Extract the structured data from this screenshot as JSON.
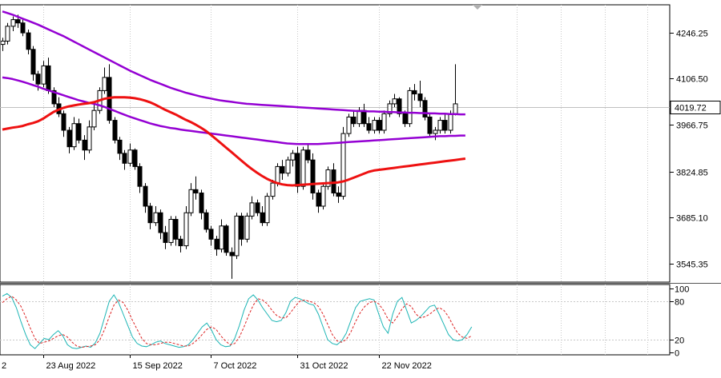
{
  "chart_data": [
    {
      "type": "candlestick",
      "price_ticks": [
        4246.25,
        4106.5,
        3966.75,
        3824.85,
        3685.1,
        3545.35
      ],
      "price_tick_labels": [
        "4246.25",
        "4106.50",
        "3966.75",
        "3824.85",
        "3685.10",
        "3545.35"
      ],
      "current_price": 4019.72,
      "current_price_label": "4019.72",
      "ylim": [
        3490,
        4330
      ],
      "date_labels": [
        "2",
        "23 Aug 2022",
        "15 Sep 2022",
        "7 Oct 2022",
        "31 Oct 2022",
        "22 Nov 2022"
      ],
      "date_label_bars": [
        -1,
        8,
        25,
        41,
        58,
        74
      ],
      "candles": [
        [
          4210,
          4230,
          4190,
          4220
        ],
        [
          4220,
          4275,
          4210,
          4265
        ],
        [
          4265,
          4295,
          4250,
          4285
        ],
        [
          4285,
          4300,
          4260,
          4275
        ],
        [
          4275,
          4285,
          4235,
          4245
        ],
        [
          4245,
          4255,
          4180,
          4195
        ],
        [
          4195,
          4205,
          4100,
          4120
        ],
        [
          4120,
          4130,
          4070,
          4090
        ],
        [
          4090,
          4160,
          4080,
          4145
        ],
        [
          4145,
          4170,
          4060,
          4070
        ],
        [
          4070,
          4080,
          4020,
          4030
        ],
        [
          4030,
          4050,
          3990,
          4000
        ],
        [
          4000,
          4010,
          3930,
          3950
        ],
        [
          3950,
          3960,
          3880,
          3900
        ],
        [
          3900,
          3990,
          3890,
          3970
        ],
        [
          3970,
          3985,
          3910,
          3920
        ],
        [
          3920,
          3935,
          3860,
          3890
        ],
        [
          3890,
          3980,
          3880,
          3960
        ],
        [
          3960,
          4030,
          3950,
          4010
        ],
        [
          4010,
          4080,
          4000,
          4070
        ],
        [
          4070,
          4140,
          4060,
          4110
        ],
        [
          4110,
          4150,
          3970,
          3980
        ],
        [
          3980,
          3990,
          3910,
          3920
        ],
        [
          3920,
          3930,
          3860,
          3880
        ],
        [
          3880,
          3890,
          3830,
          3850
        ],
        [
          3850,
          3910,
          3840,
          3890
        ],
        [
          3890,
          3895,
          3830,
          3840
        ],
        [
          3840,
          3850,
          3760,
          3780
        ],
        [
          3780,
          3790,
          3700,
          3720
        ],
        [
          3720,
          3730,
          3650,
          3670
        ],
        [
          3670,
          3720,
          3660,
          3700
        ],
        [
          3700,
          3710,
          3620,
          3640
        ],
        [
          3640,
          3660,
          3590,
          3610
        ],
        [
          3610,
          3690,
          3600,
          3680
        ],
        [
          3680,
          3690,
          3600,
          3620
        ],
        [
          3620,
          3630,
          3580,
          3600
        ],
        [
          3600,
          3720,
          3590,
          3700
        ],
        [
          3700,
          3790,
          3690,
          3770
        ],
        [
          3770,
          3810,
          3740,
          3760
        ],
        [
          3760,
          3770,
          3680,
          3700
        ],
        [
          3700,
          3710,
          3640,
          3650
        ],
        [
          3650,
          3660,
          3600,
          3620
        ],
        [
          3620,
          3630,
          3570,
          3590
        ],
        [
          3590,
          3680,
          3580,
          3660
        ],
        [
          3660,
          3665,
          3570,
          3580
        ],
        [
          3580,
          3595,
          3500,
          3570
        ],
        [
          3570,
          3700,
          3560,
          3690
        ],
        [
          3690,
          3700,
          3600,
          3620
        ],
        [
          3620,
          3700,
          3610,
          3690
        ],
        [
          3690,
          3750,
          3680,
          3730
        ],
        [
          3730,
          3740,
          3690,
          3700
        ],
        [
          3700,
          3720,
          3660,
          3670
        ],
        [
          3670,
          3760,
          3660,
          3750
        ],
        [
          3750,
          3800,
          3740,
          3790
        ],
        [
          3790,
          3850,
          3780,
          3840
        ],
        [
          3840,
          3860,
          3800,
          3820
        ],
        [
          3820,
          3870,
          3810,
          3860
        ],
        [
          3860,
          3890,
          3840,
          3880
        ],
        [
          3880,
          3900,
          3760,
          3780
        ],
        [
          3780,
          3900,
          3770,
          3890
        ],
        [
          3890,
          3910,
          3850,
          3860
        ],
        [
          3860,
          3880,
          3740,
          3760
        ],
        [
          3760,
          3770,
          3700,
          3720
        ],
        [
          3720,
          3790,
          3710,
          3780
        ],
        [
          3780,
          3840,
          3770,
          3830
        ],
        [
          3830,
          3850,
          3750,
          3760
        ],
        [
          3760,
          3780,
          3730,
          3750
        ],
        [
          3750,
          3960,
          3740,
          3940
        ],
        [
          3940,
          4000,
          3930,
          3990
        ],
        [
          3990,
          4010,
          3960,
          3970
        ],
        [
          3970,
          4020,
          3960,
          4010
        ],
        [
          4010,
          4030,
          3960,
          3970
        ],
        [
          3970,
          3990,
          3940,
          3950
        ],
        [
          3950,
          3990,
          3940,
          3980
        ],
        [
          3980,
          3990,
          3940,
          3950
        ],
        [
          3950,
          4010,
          3940,
          4000
        ],
        [
          4000,
          4040,
          3990,
          4030
        ],
        [
          4030,
          4060,
          4020,
          4045
        ],
        [
          4045,
          4050,
          3990,
          4000
        ],
        [
          4000,
          4010,
          3960,
          3970
        ],
        [
          3970,
          4080,
          3960,
          4070
        ],
        [
          4070,
          4090,
          4040,
          4060
        ],
        [
          4060,
          4100,
          4020,
          4040
        ],
        [
          4040,
          4050,
          3980,
          3990
        ],
        [
          3990,
          4000,
          3930,
          3940
        ],
        [
          3940,
          3960,
          3920,
          3950
        ],
        [
          3950,
          3990,
          3940,
          3980
        ],
        [
          3980,
          4000,
          3940,
          3950
        ],
        [
          3950,
          4010,
          3940,
          4000
        ],
        [
          4000,
          4150,
          3995,
          4030
        ]
      ],
      "series": [
        {
          "color": "#9400d3",
          "line_width": 2.5,
          "values": [
            4310,
            4305,
            4300,
            4294,
            4288,
            4282,
            4276,
            4270,
            4263,
            4256,
            4249,
            4242,
            4235,
            4227,
            4219,
            4211,
            4203,
            4195,
            4187,
            4179,
            4171,
            4163,
            4155,
            4147,
            4139,
            4131,
            4124,
            4117,
            4110,
            4103,
            4097,
            4091,
            4085,
            4079,
            4074,
            4069,
            4064,
            4060,
            4056,
            4052,
            4049,
            4046,
            4043,
            4040,
            4038,
            4036,
            4034,
            4032,
            4030,
            4029,
            4028,
            4027,
            4026,
            4025,
            4024,
            4023,
            4022,
            4021,
            4020,
            4019,
            4018,
            4017,
            4016,
            4015,
            4014,
            4013,
            4012,
            4011,
            4010,
            4009,
            4008,
            4008,
            4007,
            4007,
            4006,
            4006,
            4005,
            4005,
            4004,
            4004,
            4003,
            4003,
            4002,
            4002,
            4001,
            4001,
            4000,
            4000,
            3999,
            3999,
            3998,
            3998
          ]
        },
        {
          "color": "#9400d3",
          "line_width": 2.5,
          "values": [
            4110,
            4108,
            4105,
            4101,
            4097,
            4092,
            4087,
            4082,
            4076,
            4071,
            4066,
            4061,
            4056,
            4051,
            4046,
            4041,
            4037,
            4033,
            4030,
            4026,
            4021,
            4015,
            4009,
            4003,
            3997,
            3991,
            3986,
            3981,
            3976,
            3971,
            3967,
            3963,
            3960,
            3957,
            3955,
            3952,
            3950,
            3948,
            3946,
            3944,
            3942,
            3940,
            3938,
            3936,
            3934,
            3932,
            3930,
            3928,
            3926,
            3924,
            3922,
            3920,
            3918,
            3916,
            3914,
            3912,
            3910,
            3909,
            3908,
            3908,
            3908,
            3908,
            3908,
            3909,
            3910,
            3911,
            3912,
            3913,
            3914,
            3915,
            3916,
            3917,
            3918,
            3919,
            3920,
            3921,
            3922,
            3923,
            3924,
            3925,
            3926,
            3927,
            3928,
            3929,
            3930,
            3931,
            3932,
            3932,
            3933,
            3933,
            3934,
            3934
          ]
        },
        {
          "color": "#ee1111",
          "line_width": 3,
          "values": [
            3952,
            3955,
            3958,
            3960,
            3963,
            3968,
            3972,
            3977,
            3985,
            3995,
            4005,
            4012,
            4018,
            4022,
            4025,
            4028,
            4030,
            4032,
            4035,
            4040,
            4045,
            4048,
            4050,
            4050,
            4050,
            4049,
            4047,
            4044,
            4040,
            4035,
            4028,
            4020,
            4012,
            4005,
            3998,
            3990,
            3982,
            3975,
            3967,
            3958,
            3948,
            3936,
            3923,
            3910,
            3897,
            3884,
            3871,
            3858,
            3845,
            3833,
            3822,
            3812,
            3803,
            3796,
            3790,
            3786,
            3784,
            3783,
            3784,
            3785,
            3786,
            3787,
            3788,
            3789,
            3790,
            3791,
            3792,
            3795,
            3800,
            3806,
            3812,
            3818,
            3824,
            3828,
            3830,
            3832,
            3834,
            3836,
            3838,
            3840,
            3842,
            3844,
            3846,
            3848,
            3850,
            3852,
            3854,
            3856,
            3858,
            3860,
            3862,
            3864
          ]
        }
      ]
    },
    {
      "type": "line",
      "name": "stochastic",
      "ylim": [
        0,
        100
      ],
      "ticks": [
        100,
        80,
        20,
        0
      ],
      "tick_labels": [
        "100",
        "80",
        "20",
        "0"
      ],
      "series": [
        {
          "color": "#1cb5b5",
          "values": [
            88,
            92,
            86,
            70,
            48,
            28,
            12,
            6,
            14,
            22,
            20,
            28,
            34,
            26,
            12,
            7,
            6,
            8,
            10,
            8,
            15,
            30,
            55,
            80,
            90,
            78,
            60,
            42,
            24,
            14,
            10,
            9,
            12,
            16,
            18,
            14,
            12,
            10,
            8,
            9,
            12,
            20,
            30,
            40,
            46,
            35,
            20,
            12,
            9,
            10,
            22,
            42,
            66,
            84,
            90,
            82,
            70,
            60,
            50,
            48,
            50,
            62,
            80,
            86,
            84,
            80,
            76,
            74,
            60,
            40,
            20,
            14,
            12,
            18,
            30,
            50,
            70,
            80,
            82,
            84,
            82,
            60,
            40,
            30,
            60,
            80,
            86,
            66,
            46,
            50,
            56,
            64,
            72,
            74,
            60,
            44,
            28,
            20,
            18,
            20,
            28,
            40
          ]
        },
        {
          "color": "#dd2222",
          "values": [
            78,
            84,
            88,
            82,
            72,
            56,
            38,
            22,
            14,
            16,
            18,
            22,
            26,
            28,
            24,
            16,
            10,
            8,
            9,
            10,
            12,
            20,
            36,
            56,
            74,
            82,
            78,
            66,
            50,
            36,
            22,
            14,
            12,
            12,
            14,
            16,
            16,
            14,
            12,
            10,
            10,
            14,
            20,
            28,
            36,
            40,
            36,
            26,
            18,
            12,
            14,
            24,
            40,
            58,
            74,
            84,
            82,
            76,
            66,
            58,
            54,
            54,
            62,
            72,
            80,
            82,
            80,
            78,
            72,
            60,
            44,
            28,
            18,
            16,
            20,
            32,
            48,
            62,
            72,
            78,
            80,
            76,
            66,
            52,
            46,
            56,
            68,
            76,
            72,
            60,
            54,
            56,
            60,
            66,
            70,
            66,
            56,
            42,
            30,
            24,
            22,
            26
          ]
        }
      ]
    }
  ]
}
